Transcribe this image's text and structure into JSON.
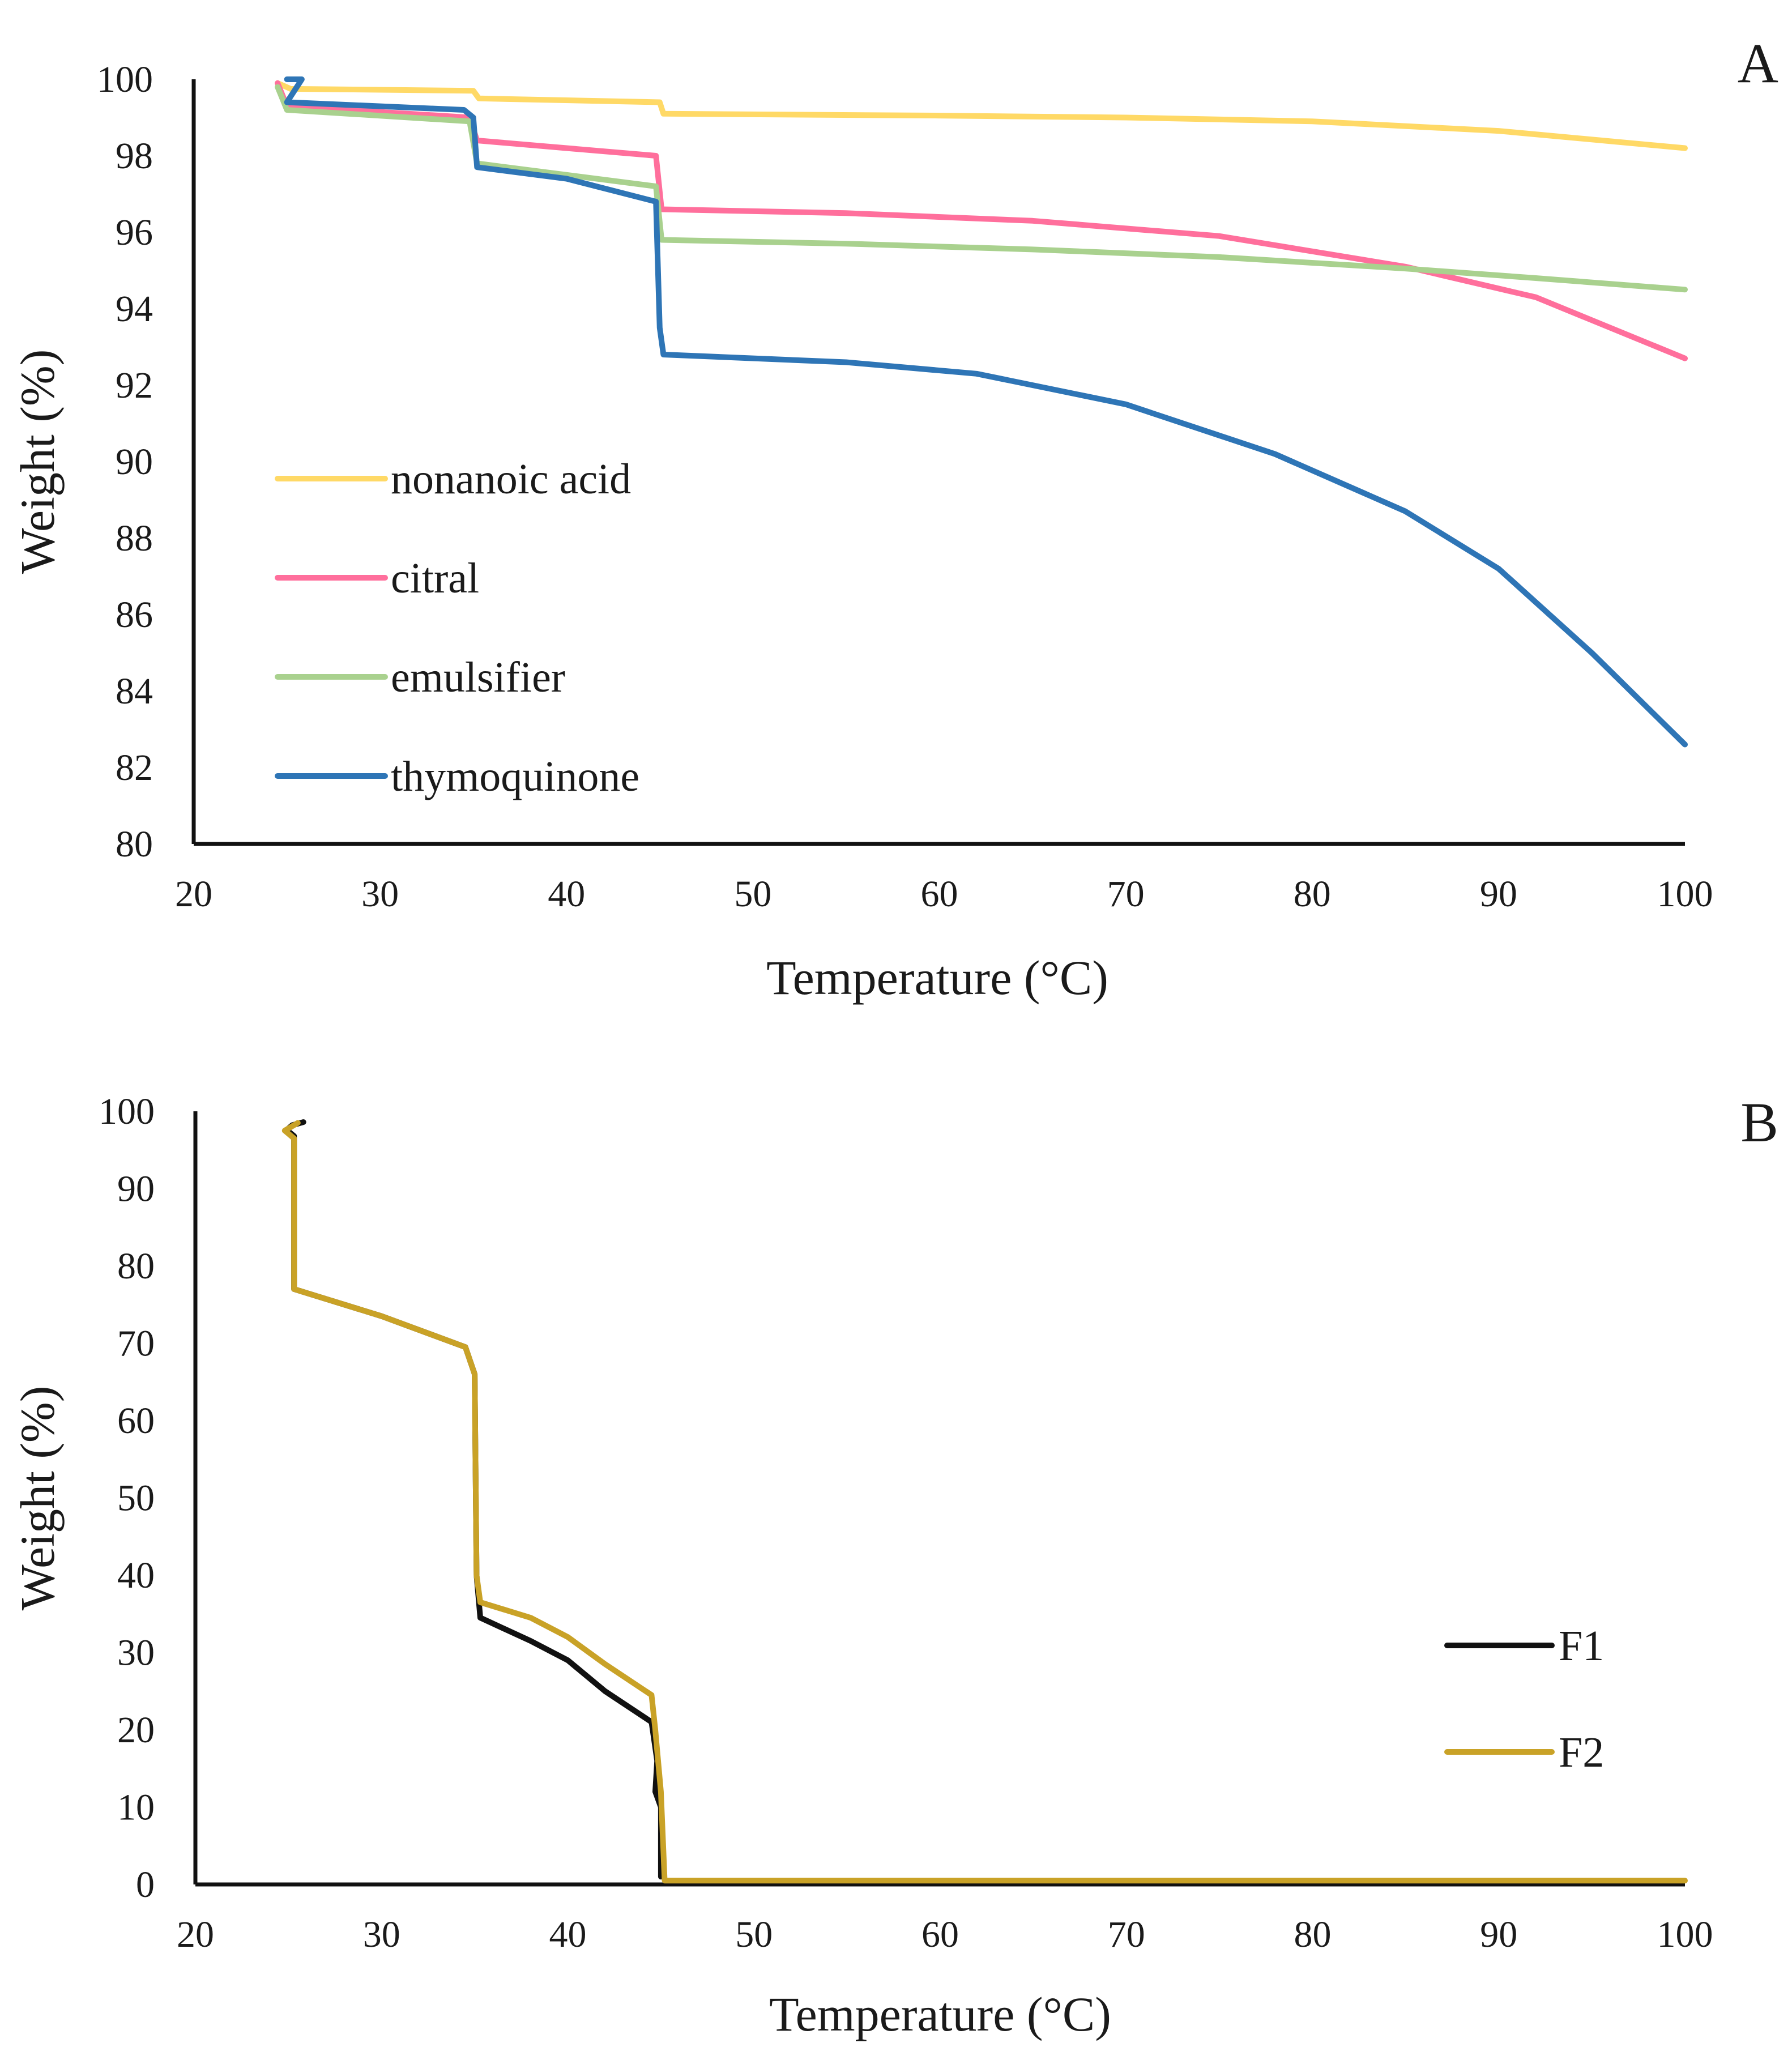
{
  "chart_data": [
    {
      "panel": "A",
      "type": "line",
      "title": "",
      "xlabel": "Temperature (°C)",
      "ylabel": "Weight (%)",
      "xlim": [
        20,
        100
      ],
      "ylim": [
        80,
        100
      ],
      "xticks": [
        "20",
        "30",
        "40",
        "50",
        "60",
        "70",
        "80",
        "90",
        "100"
      ],
      "yticks": [
        "80",
        "82",
        "84",
        "86",
        "88",
        "90",
        "92",
        "94",
        "96",
        "98",
        "100"
      ],
      "grid": false,
      "legend_position": "left",
      "series": [
        {
          "name": "nonanoic acid",
          "color": "#FFD966",
          "points": [
            [
              24.5,
              99.9
            ],
            [
              25.2,
              99.75
            ],
            [
              35,
              99.7
            ],
            [
              35.3,
              99.5
            ],
            [
              45,
              99.4
            ],
            [
              45.2,
              99.1
            ],
            [
              60,
              99.05
            ],
            [
              70,
              99.0
            ],
            [
              80,
              98.9
            ],
            [
              90,
              98.65
            ],
            [
              100,
              98.2
            ]
          ]
        },
        {
          "name": "citral",
          "color": "#FF6F9C",
          "points": [
            [
              24.5,
              99.9
            ],
            [
              25,
              99.3
            ],
            [
              34.8,
              99.0
            ],
            [
              35.2,
              98.4
            ],
            [
              44.8,
              98.0
            ],
            [
              45.1,
              96.6
            ],
            [
              55,
              96.5
            ],
            [
              65,
              96.3
            ],
            [
              75,
              95.9
            ],
            [
              85,
              95.1
            ],
            [
              92,
              94.3
            ],
            [
              100,
              92.7
            ]
          ]
        },
        {
          "name": "emulsifier",
          "color": "#A9D18E",
          "points": [
            [
              24.5,
              99.8
            ],
            [
              25,
              99.2
            ],
            [
              34.8,
              98.9
            ],
            [
              35.2,
              97.8
            ],
            [
              44.8,
              97.2
            ],
            [
              45.1,
              95.8
            ],
            [
              55,
              95.7
            ],
            [
              65,
              95.55
            ],
            [
              75,
              95.35
            ],
            [
              85,
              95.05
            ],
            [
              92,
              94.8
            ],
            [
              100,
              94.5
            ]
          ]
        },
        {
          "name": "thymoquinone",
          "color": "#2E75B6",
          "points": [
            [
              25,
              100
            ],
            [
              25.8,
              100
            ],
            [
              25,
              99.4
            ],
            [
              34.5,
              99.2
            ],
            [
              35,
              99.0
            ],
            [
              35.2,
              97.7
            ],
            [
              40,
              97.4
            ],
            [
              44.8,
              96.8
            ],
            [
              45,
              93.5
            ],
            [
              45.2,
              92.8
            ],
            [
              55,
              92.6
            ],
            [
              62,
              92.3
            ],
            [
              70,
              91.5
            ],
            [
              78,
              90.2
            ],
            [
              85,
              88.7
            ],
            [
              90,
              87.2
            ],
            [
              95,
              85.0
            ],
            [
              100,
              82.6
            ]
          ]
        }
      ]
    },
    {
      "panel": "B",
      "type": "line",
      "title": "",
      "xlabel": "Temperature (°C)",
      "ylabel": "Weight (%)",
      "xlim": [
        20,
        100
      ],
      "ylim": [
        0,
        100
      ],
      "xticks": [
        "20",
        "30",
        "40",
        "50",
        "60",
        "70",
        "80",
        "90",
        "100"
      ],
      "yticks": [
        "0",
        "10",
        "20",
        "30",
        "40",
        "50",
        "60",
        "70",
        "80",
        "90",
        "100"
      ],
      "grid": false,
      "legend_position": "bottom-right",
      "series": [
        {
          "name": "F1",
          "color": "#111111",
          "points": [
            [
              25.8,
              98.6
            ],
            [
              25.2,
              98.2
            ],
            [
              24.9,
              97.6
            ],
            [
              25.3,
              96.8
            ],
            [
              25.3,
              77
            ],
            [
              30,
              73.5
            ],
            [
              34.5,
              69.5
            ],
            [
              35,
              66
            ],
            [
              35.1,
              40
            ],
            [
              35.3,
              34.5
            ],
            [
              38,
              31.5
            ],
            [
              40,
              29
            ],
            [
              42,
              25
            ],
            [
              44.5,
              21
            ],
            [
              44.8,
              16
            ],
            [
              44.7,
              12
            ],
            [
              45,
              10
            ],
            [
              45,
              1
            ]
          ]
        },
        {
          "name": "F2",
          "color": "#C9A227",
          "points": [
            [
              25.5,
              98.5
            ],
            [
              24.8,
              97.5
            ],
            [
              25.3,
              96.5
            ],
            [
              25.3,
              77
            ],
            [
              30,
              73.5
            ],
            [
              34.5,
              69.5
            ],
            [
              35,
              66
            ],
            [
              35.1,
              40
            ],
            [
              35.3,
              36.5
            ],
            [
              38,
              34.5
            ],
            [
              40,
              32
            ],
            [
              42,
              28.5
            ],
            [
              44.5,
              24.5
            ],
            [
              44.7,
              20
            ],
            [
              45,
              12
            ],
            [
              45.2,
              0.5
            ],
            [
              50,
              0.5
            ],
            [
              100,
              0.5
            ]
          ]
        }
      ]
    }
  ]
}
